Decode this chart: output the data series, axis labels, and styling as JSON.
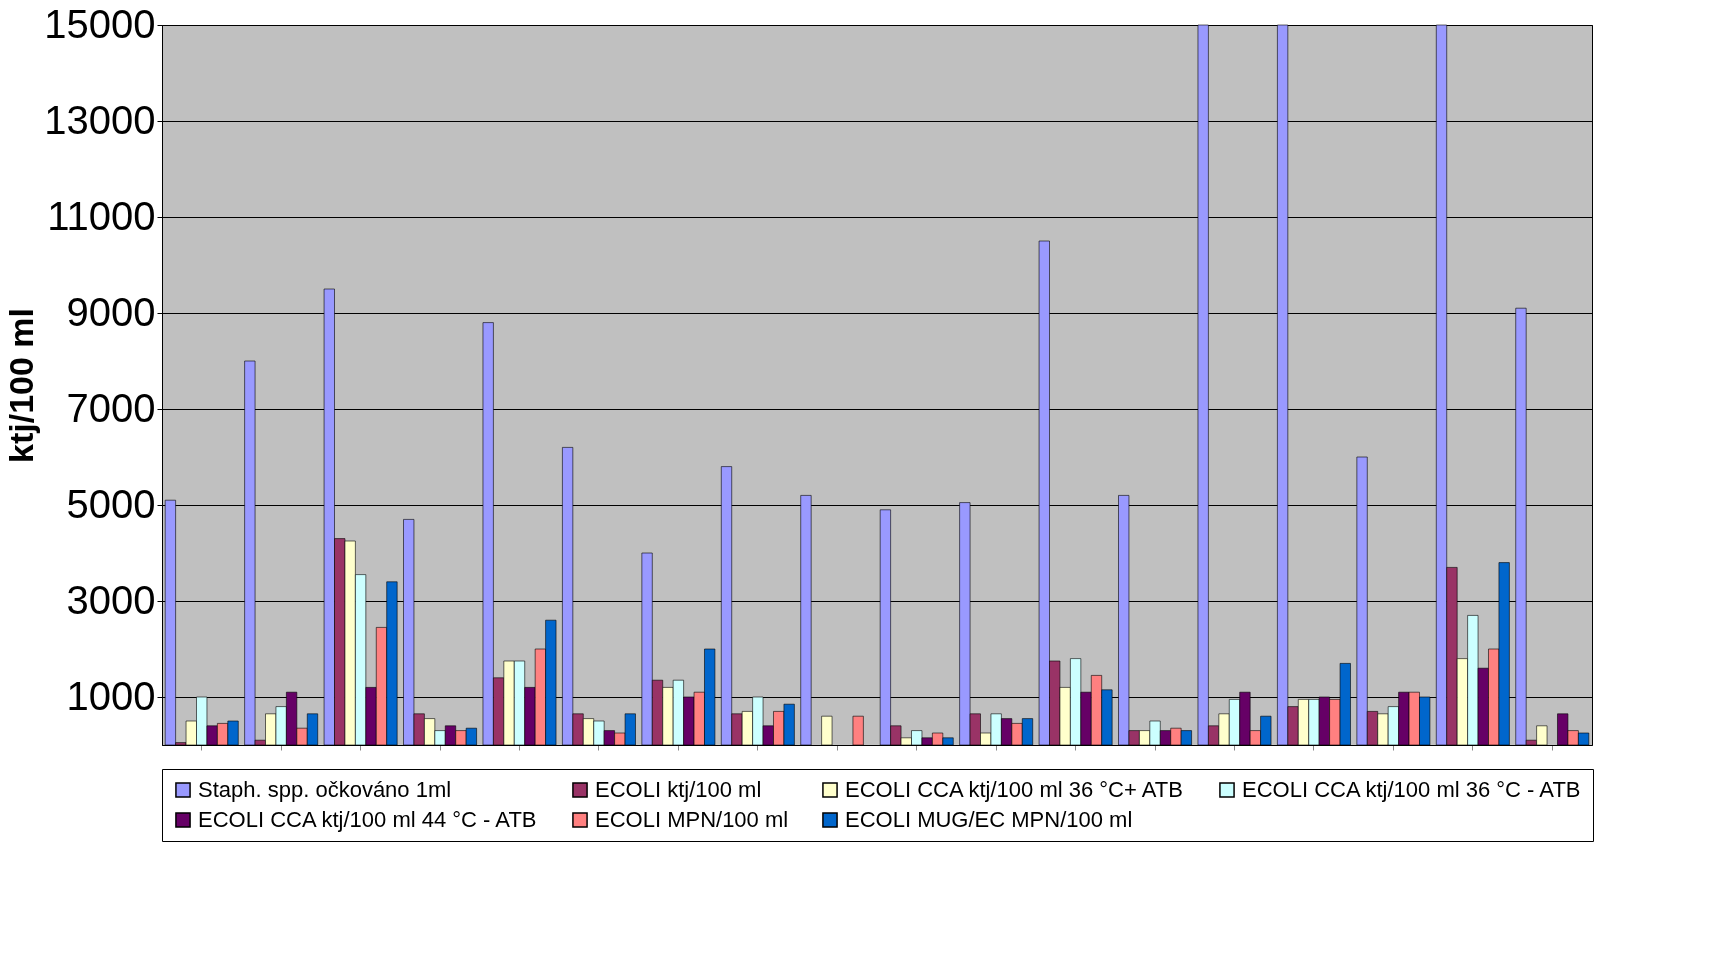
{
  "chart_data": {
    "type": "bar",
    "ylabel": "ktj/100 ml",
    "categories": [
      null,
      null,
      null,
      null,
      null,
      null,
      null,
      null,
      null,
      null,
      null,
      null,
      null,
      null,
      null,
      null,
      null,
      null
    ],
    "ylim": [
      0,
      15000
    ],
    "yticks": [
      1000,
      3000,
      5000,
      7000,
      9000,
      11000,
      13000,
      15000
    ],
    "grid": "y",
    "legend": "bottom",
    "tick_labels": "y",
    "series": [
      {
        "name": "Staph. spp. očkováno 1ml",
        "color": "#9999ff",
        "values": [
          5100,
          8000,
          9500,
          4700,
          8800,
          6200,
          4000,
          5800,
          5200,
          4900,
          5050,
          10500,
          5200,
          15000,
          15000,
          6000,
          15000,
          9100
        ]
      },
      {
        "name": "ECOLI ktj/100 ml",
        "color": "#993366",
        "values": [
          50,
          100,
          4300,
          650,
          1400,
          650,
          1350,
          650,
          null,
          400,
          650,
          1750,
          300,
          400,
          800,
          700,
          3700,
          100
        ]
      },
      {
        "name": "ECOLI CCA ktj/100 ml 36 °C+ ATB",
        "color": "#ffffcc",
        "values": [
          500,
          650,
          4250,
          550,
          1750,
          550,
          1200,
          700,
          600,
          150,
          250,
          1200,
          300,
          650,
          950,
          650,
          1800,
          400
        ]
      },
      {
        "name": "ECOLI CCA ktj/100 ml 36 °C - ATB",
        "color": "#ccffff",
        "values": [
          1000,
          800,
          3550,
          300,
          1750,
          500,
          1350,
          1000,
          null,
          300,
          650,
          1800,
          500,
          950,
          950,
          800,
          2700,
          null
        ]
      },
      {
        "name": "ECOLI CCA ktj/100 ml 44 °C - ATB",
        "color": "#660066",
        "values": [
          400,
          1100,
          1200,
          400,
          1200,
          300,
          1000,
          400,
          null,
          150,
          550,
          1100,
          300,
          1100,
          1000,
          1100,
          1600,
          650
        ]
      },
      {
        "name": "ECOLI MPN/100 ml",
        "color": "#ff8080",
        "values": [
          450,
          350,
          2450,
          300,
          2000,
          250,
          1100,
          700,
          600,
          250,
          450,
          1450,
          350,
          300,
          950,
          1100,
          2000,
          300
        ]
      },
      {
        "name": "ECOLI MUG/EC MPN/100 ml",
        "color": "#0066cc",
        "values": [
          500,
          650,
          3400,
          350,
          2600,
          650,
          2000,
          850,
          null,
          150,
          550,
          1150,
          300,
          600,
          1700,
          1000,
          3800,
          250
        ]
      }
    ]
  }
}
